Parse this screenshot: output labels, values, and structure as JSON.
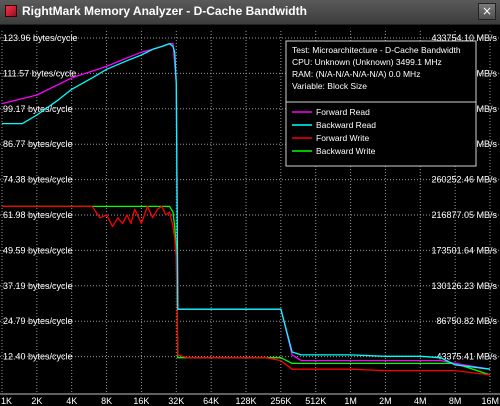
{
  "window": {
    "title": "RightMark Memory Analyzer - D-Cache Bandwidth",
    "close_glyph": "×",
    "icon": "app-icon",
    "close_icon": "close-icon"
  },
  "chart_data": {
    "type": "line",
    "xlabel": "",
    "ylabel": "",
    "x_ticks": [
      "1K",
      "2K",
      "4K",
      "8K",
      "16K",
      "32K",
      "64K",
      "128K",
      "256K",
      "512K",
      "1M",
      "2M",
      "4M",
      "8M",
      "16M"
    ],
    "y_left_ticks": [
      "123.96 bytes/cycle",
      "111.57 bytes/cycle",
      "99.17 bytes/cycle",
      "86.77 bytes/cycle",
      "74.38 bytes/cycle",
      "61.98 bytes/cycle",
      "49.59 bytes/cycle",
      "37.19 bytes/cycle",
      "24.79 bytes/cycle",
      "12.40 bytes/cycle"
    ],
    "y_right_ticks": [
      "433754.10 MB/s",
      "390378.70 MB/s",
      "347003.28 MB/s",
      "303627.88 MB/s",
      "260252.46 MB/s",
      "216877.05 MB/s",
      "173501.64 MB/s",
      "130126.23 MB/s",
      "86750.82 MB/s",
      "43375.41 MB/s"
    ],
    "ylim": [
      0,
      123.96
    ],
    "x_scale": "log2",
    "grid": true,
    "info": [
      "Test: Microarchitecture - D-Cache Bandwidth",
      "CPU: Unknown (Unknown) 3499.1 MHz",
      "RAM:  (N/A-N/A-N/A-N/A) 0.0 MHz",
      "Variable: Block Size"
    ],
    "legend_position": "top-right",
    "series": [
      {
        "name": "Forward Read",
        "color": "#ff00ff",
        "x": [
          1,
          2,
          4,
          8,
          12,
          16,
          20,
          24,
          28,
          30,
          31,
          32,
          33,
          40,
          48,
          64,
          96,
          128,
          160,
          192,
          224,
          256,
          320,
          384,
          512,
          1024,
          2048,
          4096,
          6144,
          8192,
          16384
        ],
        "y": [
          101,
          104,
          110,
          114,
          117,
          119,
          120,
          121,
          122,
          122,
          115,
          108,
          29,
          29,
          29,
          29,
          29,
          29,
          29,
          29,
          29,
          29,
          13,
          11,
          11,
          11,
          11,
          11,
          11,
          10,
          8
        ]
      },
      {
        "name": "Backward Read",
        "color": "#00ffff",
        "x": [
          1,
          1.5,
          2,
          3,
          4,
          6,
          8,
          12,
          16,
          20,
          24,
          28,
          30,
          31,
          32,
          33,
          40,
          48,
          64,
          96,
          128,
          160,
          192,
          224,
          256,
          320,
          384,
          512,
          1024,
          2048,
          4096,
          6144,
          8192,
          16384
        ],
        "y": [
          94,
          94,
          97,
          102,
          106,
          110,
          113,
          116,
          118,
          120,
          121,
          122,
          121,
          119,
          108,
          29,
          29,
          29,
          29,
          29,
          29,
          29,
          29,
          29,
          29,
          14,
          13,
          13,
          13,
          12.5,
          12.5,
          12,
          9.5,
          8
        ]
      },
      {
        "name": "Forward Write",
        "color": "#ff0000",
        "x": [
          1,
          2,
          4,
          6,
          7,
          8,
          9,
          10,
          11,
          12,
          13,
          14,
          16,
          18,
          20,
          22,
          24,
          26,
          28,
          30,
          31,
          32,
          33,
          40,
          48,
          64,
          96,
          128,
          192,
          256,
          320,
          384,
          512,
          1024,
          2048,
          4096,
          6144,
          8192,
          16384
        ],
        "y": [
          65,
          65,
          65,
          65,
          61,
          62,
          58,
          61,
          59,
          62,
          59,
          64,
          59,
          65,
          61,
          64,
          65,
          62,
          63,
          58,
          54,
          47,
          13,
          12,
          12,
          12,
          12,
          12,
          12,
          11,
          8,
          8,
          8,
          8,
          7.5,
          7.5,
          7.5,
          7.5,
          6
        ]
      },
      {
        "name": "Backward Write",
        "color": "#00ff00",
        "x": [
          1,
          2,
          4,
          8,
          16,
          24,
          28,
          30,
          31,
          32,
          33,
          40,
          48,
          64,
          96,
          128,
          192,
          256,
          320,
          384,
          512,
          1024,
          2048,
          4096,
          6144,
          8192,
          16384
        ],
        "y": [
          65,
          65,
          65,
          65,
          65,
          65,
          65,
          63,
          58,
          50,
          12,
          12,
          12,
          12,
          12,
          12,
          12,
          12,
          10,
          10,
          10,
          10,
          10,
          10,
          10,
          10,
          6
        ]
      }
    ]
  }
}
